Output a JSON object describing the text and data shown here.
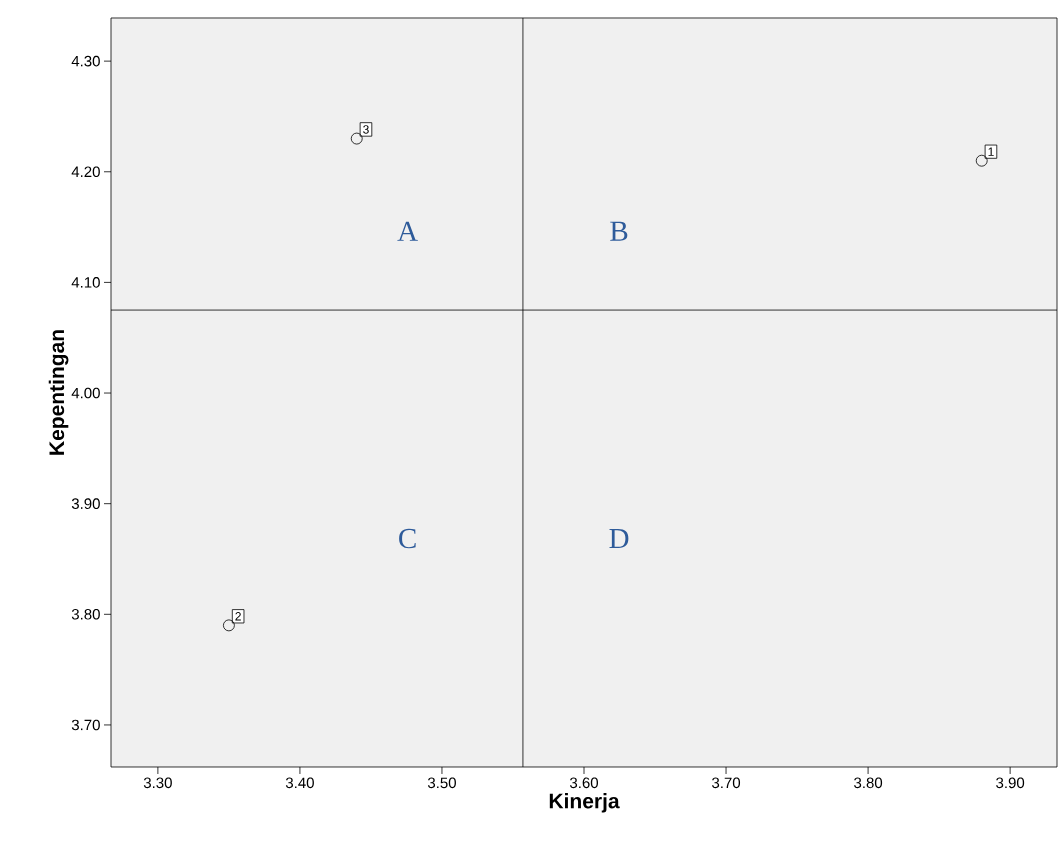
{
  "chart_data": {
    "type": "scatter",
    "xlabel": "Kinerja",
    "ylabel": "Kepentingan",
    "x": [
      3.88,
      3.35,
      3.44
    ],
    "values": [
      4.21,
      3.79,
      4.23
    ],
    "color": "#000000",
    "marker": "circle",
    "xlim": [
      3.267,
      3.933
    ],
    "ylim": [
      3.662,
      4.339
    ],
    "xticks": [
      {
        "value": 3.3,
        "label": "3.30"
      },
      {
        "value": 3.4,
        "label": "3.40"
      },
      {
        "value": 3.5,
        "label": "3.50"
      },
      {
        "value": 3.6,
        "label": "3.60"
      },
      {
        "value": 3.7,
        "label": "3.70"
      },
      {
        "value": 3.8,
        "label": "3.80"
      },
      {
        "value": 3.9,
        "label": "3.90"
      }
    ],
    "yticks": [
      {
        "value": 3.7,
        "label": "3.70"
      },
      {
        "value": 3.8,
        "label": "3.80"
      },
      {
        "value": 3.9,
        "label": "3.90"
      },
      {
        "value": 4.0,
        "label": "4.00"
      },
      {
        "value": 4.1,
        "label": "4.10"
      },
      {
        "value": 4.2,
        "label": "4.20"
      },
      {
        "value": 4.3,
        "label": "4.30"
      }
    ],
    "ref_lines": [
      {
        "axis": "x",
        "value": 3.557,
        "color": "#000000"
      },
      {
        "axis": "y",
        "value": 4.075,
        "color": "#000000"
      }
    ],
    "annotations": [
      "A",
      "B",
      "C",
      "D",
      {
        "text": "1",
        "x": 3.88,
        "y": 4.21
      },
      {
        "text": "2",
        "x": 3.35,
        "y": 3.79
      },
      {
        "text": "3",
        "x": 3.44,
        "y": 4.23
      }
    ]
  }
}
